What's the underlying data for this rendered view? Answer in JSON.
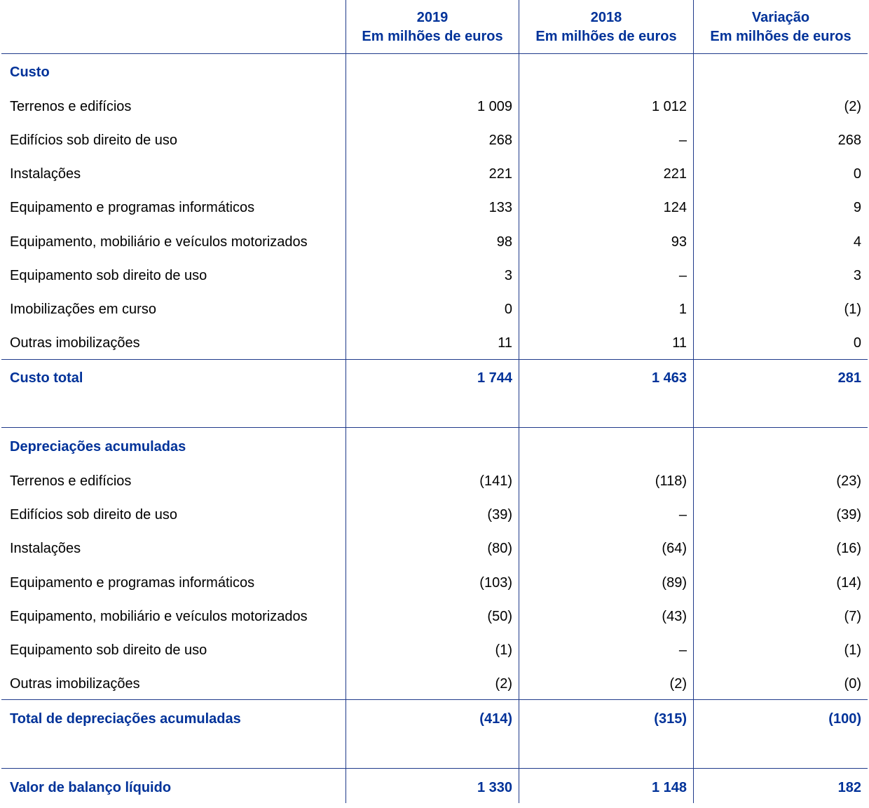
{
  "columns": [
    {
      "line1": "2019",
      "line2": "Em milhões de euros"
    },
    {
      "line1": "2018",
      "line2": "Em milhões de euros"
    },
    {
      "line1": "Variação",
      "line2": "Em milhões de euros"
    }
  ],
  "cost": {
    "heading": "Custo",
    "rows": [
      {
        "label": "Terrenos e edifícios",
        "v2019": "1 009",
        "v2018": "1 012",
        "var": "(2)"
      },
      {
        "label": "Edifícios sob direito de uso",
        "v2019": "268",
        "v2018": "–",
        "var": "268"
      },
      {
        "label": "Instalações",
        "v2019": "221",
        "v2018": "221",
        "var": "0"
      },
      {
        "label": "Equipamento e programas informáticos",
        "v2019": "133",
        "v2018": "124",
        "var": "9"
      },
      {
        "label": "Equipamento, mobiliário e veículos motorizados",
        "v2019": "98",
        "v2018": "93",
        "var": "4"
      },
      {
        "label": "Equipamento sob direito de uso",
        "v2019": "3",
        "v2018": "–",
        "var": "3"
      },
      {
        "label": "Imobilizações em curso",
        "v2019": "0",
        "v2018": "1",
        "var": "(1)"
      },
      {
        "label": "Outras imobilizações",
        "v2019": "11",
        "v2018": "11",
        "var": "0"
      }
    ],
    "total": {
      "label": "Custo total",
      "v2019": "1 744",
      "v2018": "1 463",
      "var": "281"
    }
  },
  "depreciation": {
    "heading": "Depreciações acumuladas",
    "rows": [
      {
        "label": "Terrenos e edifícios",
        "v2019": "(141)",
        "v2018": "(118)",
        "var": "(23)"
      },
      {
        "label": "Edifícios sob direito de uso",
        "v2019": "(39)",
        "v2018": "–",
        "var": "(39)"
      },
      {
        "label": "Instalações",
        "v2019": "(80)",
        "v2018": "(64)",
        "var": "(16)"
      },
      {
        "label": "Equipamento e programas informáticos",
        "v2019": "(103)",
        "v2018": "(89)",
        "var": "(14)"
      },
      {
        "label": "Equipamento, mobiliário e veículos motorizados",
        "v2019": "(50)",
        "v2018": "(43)",
        "var": "(7)"
      },
      {
        "label": "Equipamento sob direito de uso",
        "v2019": "(1)",
        "v2018": "–",
        "var": "(1)"
      },
      {
        "label": "Outras imobilizações",
        "v2019": "(2)",
        "v2018": "(2)",
        "var": "(0)"
      }
    ],
    "total": {
      "label": "Total de depreciações acumuladas",
      "v2019": "(414)",
      "v2018": "(315)",
      "var": "(100)"
    }
  },
  "net": {
    "label": "Valor de balanço líquido",
    "v2019": "1 330",
    "v2018": "1 148",
    "var": "182"
  }
}
